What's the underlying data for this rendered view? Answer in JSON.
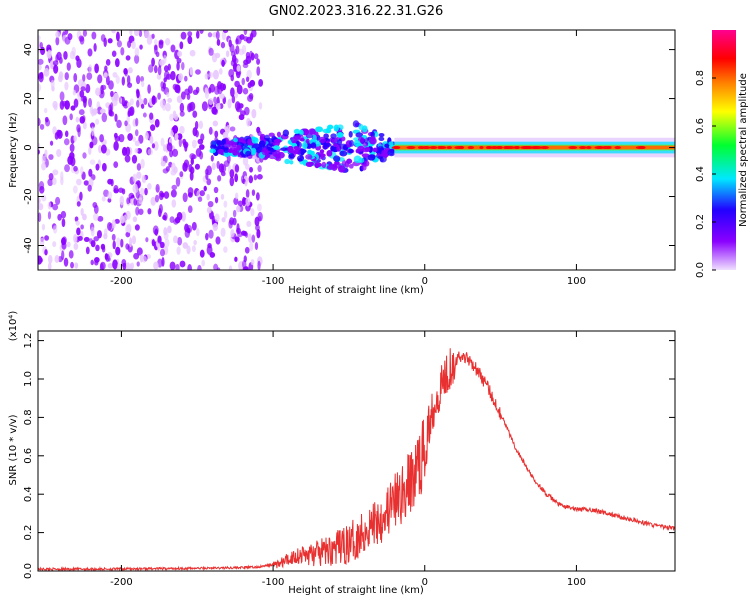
{
  "title": "GN02.2023.316.22.31.G26",
  "chart_data": [
    {
      "type": "heatmap",
      "xlabel": "Height of straight line (km)",
      "ylabel": "Frequency (Hz)",
      "xlim": [
        -255,
        165
      ],
      "ylim": [
        -50,
        48
      ],
      "xticks": [
        -200,
        -100,
        0,
        100
      ],
      "yticks": [
        -40,
        -20,
        0,
        20,
        40
      ],
      "colorbar": {
        "label": "Normalized spectral amplitude",
        "range": [
          0,
          1
        ],
        "ticks": [
          0.0,
          0.2,
          0.4,
          0.6,
          0.8
        ],
        "colormap": [
          "#e8c8ff",
          "#8a00ff",
          "#2200ff",
          "#00e8ff",
          "#00ff30",
          "#ffff00",
          "#ff8000",
          "#ff0000",
          "#ff0090"
        ]
      },
      "regions": [
        {
          "x": [
            -255,
            -108
          ],
          "freq": [
            -50,
            48
          ],
          "amplitude": 0.08,
          "pattern": "scattered"
        },
        {
          "x": [
            -140,
            -20
          ],
          "freq": [
            -12,
            12
          ],
          "amplitude": 0.3,
          "pattern": "band-widening"
        },
        {
          "x": [
            -20,
            165
          ],
          "freq": [
            -4,
            4
          ],
          "amplitude": 0.45,
          "pattern": "narrow-band"
        },
        {
          "x": [
            -20,
            165
          ],
          "freq": [
            -0.8,
            0.8
          ],
          "amplitude": 0.9,
          "pattern": "carrier-line"
        }
      ]
    },
    {
      "type": "line",
      "xlabel": "Height of straight line (km)",
      "ylabel": "SNR (10 * v/v)",
      "yscale_label": "(x10⁴)",
      "xlim": [
        -255,
        165
      ],
      "ylim": [
        0,
        1.25
      ],
      "xticks": [
        -200,
        -100,
        0,
        100
      ],
      "yticks": [
        0.0,
        0.2,
        0.4,
        0.6,
        0.8,
        1.0,
        1.2
      ],
      "series": [
        {
          "color": "#e83030",
          "x": [
            -255,
            -220,
            -180,
            -140,
            -110,
            -95,
            -85,
            -70,
            -50,
            -35,
            -20,
            -10,
            0,
            5,
            10,
            15,
            20,
            25,
            30,
            40,
            50,
            60,
            70,
            80,
            90,
            100,
            110,
            120,
            130,
            140,
            150,
            165
          ],
          "y": [
            0.01,
            0.01,
            0.012,
            0.015,
            0.02,
            0.04,
            0.08,
            0.09,
            0.14,
            0.24,
            0.35,
            0.45,
            0.62,
            0.85,
            0.95,
            1.05,
            1.1,
            1.12,
            1.1,
            0.98,
            0.82,
            0.64,
            0.5,
            0.4,
            0.34,
            0.32,
            0.32,
            0.3,
            0.28,
            0.26,
            0.24,
            0.22
          ]
        }
      ]
    }
  ]
}
